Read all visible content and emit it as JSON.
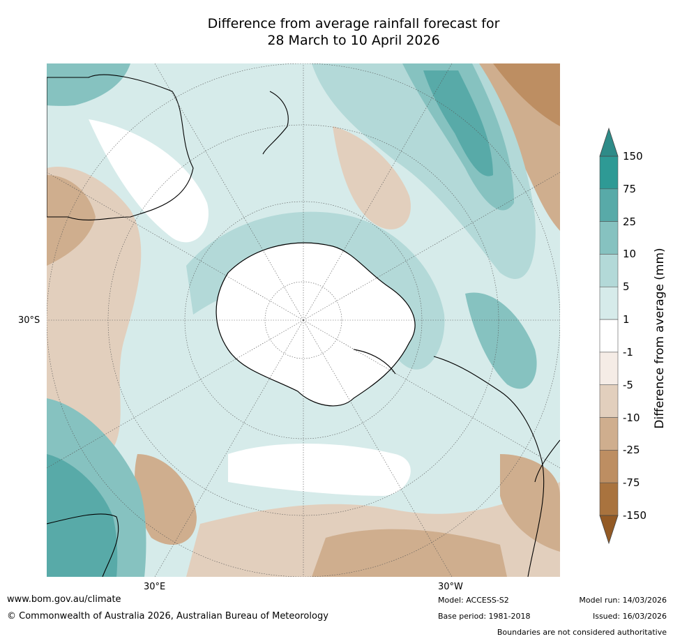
{
  "title": {
    "line1": "Difference from average rainfall forecast for",
    "line2": "28 March to 10 April 2026"
  },
  "axes": {
    "lon_labels": [
      "30°E",
      "30°W"
    ],
    "lat_labels": [
      "30°S"
    ]
  },
  "colorbar": {
    "label": "Difference from average (mm)",
    "ticks": [
      "150",
      "75",
      "25",
      "10",
      "5",
      "1",
      "-1",
      "-5",
      "-10",
      "-25",
      "-75",
      "-150"
    ],
    "colors": [
      "#2e8b88",
      "#2e9a95",
      "#58aaa8",
      "#86c2c0",
      "#b3d9d8",
      "#d6ebea",
      "#ffffff",
      "#f5ece6",
      "#e2cfbd",
      "#cfae8e",
      "#bd8e62",
      "#a9733e",
      "#935a25"
    ]
  },
  "footer": {
    "website": "www.bom.gov.au/climate",
    "copyright": "© Commonwealth of Australia 2026, Australian Bureau of Meteorology",
    "model": "Model: ACCESS-S2",
    "base_period": "Base period: 1981-2018",
    "model_run": "Model run: 14/03/2026",
    "issued": "Issued: 16/03/2026",
    "disclaimer": "Boundaries are not considered authoritative"
  },
  "map_colors": {
    "wet_strong": "#58aaa8",
    "wet_moderate": "#86c2c0",
    "wet_light": "#b3d9d8",
    "wet_slight": "#d6ebea",
    "neutral": "#ffffff",
    "dry_slight": "#f5ece6",
    "dry_light": "#e2cfbd",
    "dry_moderate": "#cfae8e",
    "dry_strong": "#bd8e62"
  }
}
